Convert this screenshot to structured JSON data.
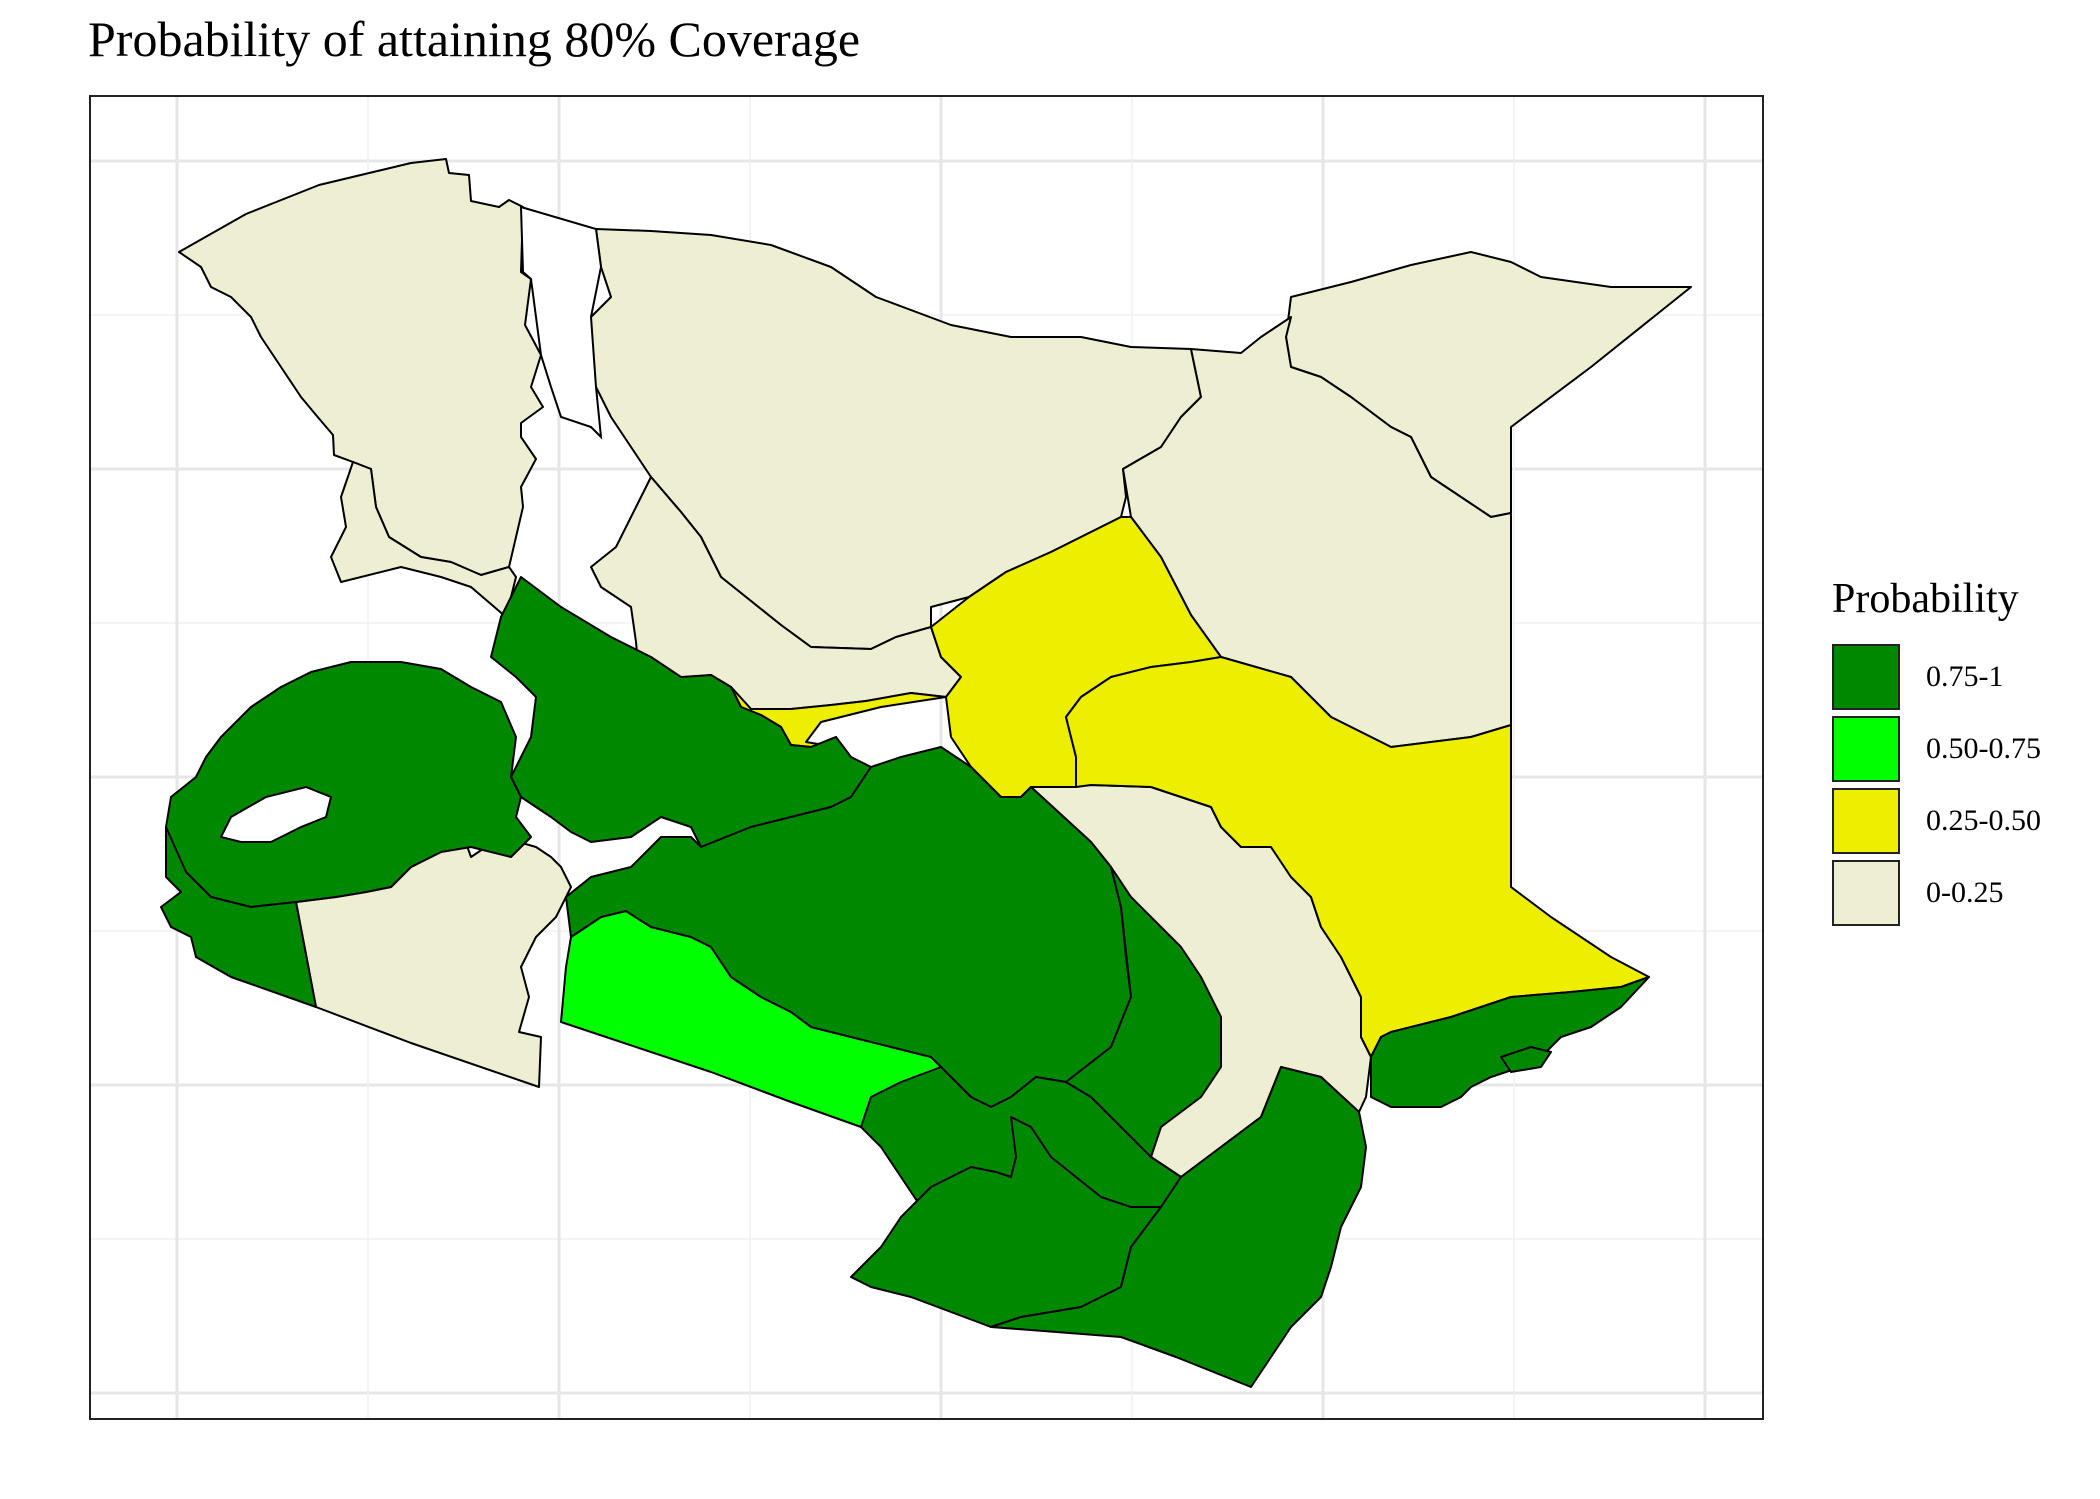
{
  "title": "Probability of attaining 80% Coverage",
  "legend": {
    "title": "Probability",
    "items": [
      {
        "label": "0.75-1",
        "color": "#008800"
      },
      {
        "label": "0.50-0.75",
        "color": "#00ff00"
      },
      {
        "label": "0.25-0.50",
        "color": "#eeee00"
      },
      {
        "label": "0-0.25",
        "color": "#eeeed2"
      }
    ]
  },
  "map": {
    "subject": "Kenya counties choropleth",
    "categories": {
      "high": "0.75-1",
      "mid": "0.50-0.75",
      "low": "0.25-0.50",
      "verylow": "0-0.25"
    },
    "lake_color": "#ffffff"
  }
}
